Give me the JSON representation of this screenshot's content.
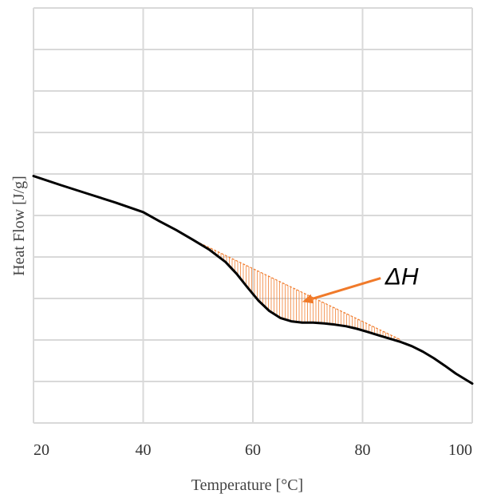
{
  "chart_data": {
    "type": "line",
    "title": "",
    "xlabel": "Temperature [°C]",
    "ylabel": "Heat Flow [J/g]",
    "xlim": [
      20,
      100
    ],
    "ylim": [
      0,
      10
    ],
    "x_ticks": [
      20,
      40,
      60,
      80,
      100
    ],
    "x_tick_labels": [
      "20",
      "40",
      "60",
      "80",
      "100"
    ],
    "y_tick_labels": [],
    "grid": true,
    "series": [
      {
        "color": "#000000",
        "x": [
          20,
          25,
          30,
          35,
          40,
          43,
          46,
          49,
          52,
          55,
          57,
          59,
          61,
          63,
          65,
          67,
          69,
          71,
          73,
          75,
          77,
          79,
          81,
          83,
          85,
          87,
          89,
          91,
          93,
          95,
          97,
          100
        ],
        "y": [
          5.95,
          5.73,
          5.52,
          5.31,
          5.08,
          4.86,
          4.65,
          4.42,
          4.18,
          3.88,
          3.6,
          3.27,
          2.95,
          2.7,
          2.53,
          2.45,
          2.42,
          2.42,
          2.4,
          2.37,
          2.33,
          2.27,
          2.19,
          2.11,
          2.03,
          1.95,
          1.85,
          1.72,
          1.56,
          1.38,
          1.19,
          0.95
        ]
      }
    ],
    "baseline": {
      "color": "#f07a2a",
      "x": [
        49,
        87
      ],
      "y": [
        4.42,
        2.0
      ]
    },
    "annotations": [
      {
        "text": "ΔH",
        "color": "#f07a2a",
        "text_x": 84.1,
        "text_y": 3.55,
        "arrow_from": [
          83.3,
          3.49
        ],
        "arrow_to": [
          69,
          2.92
        ]
      }
    ]
  }
}
